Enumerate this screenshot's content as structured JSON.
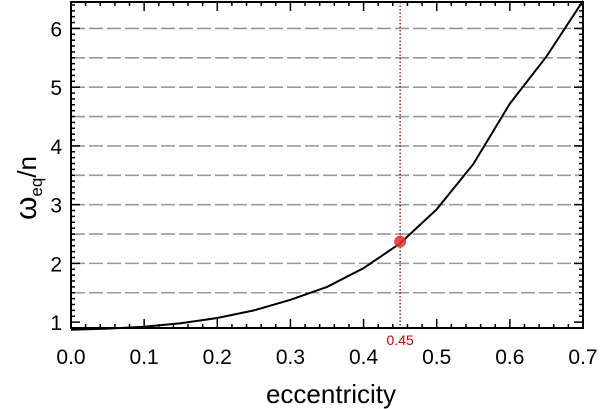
{
  "chart_data": {
    "type": "line",
    "xlabel": "eccentricity",
    "ylabel_main": "ω",
    "ylabel_sub": "eq",
    "ylabel_tail": "/n",
    "xlim": [
      0.0,
      0.7
    ],
    "ylim": [
      0.9,
      6.45
    ],
    "x_ticks": [
      "0.0",
      "0.1",
      "0.2",
      "0.3",
      "0.4",
      "0.5",
      "0.6",
      "0.7"
    ],
    "y_ticks": [
      "1",
      "2",
      "3",
      "4",
      "5",
      "6"
    ],
    "reference_lines_y": [
      1.5,
      2.0,
      2.5,
      3.0,
      3.5,
      4.0,
      4.5,
      5.0,
      5.5,
      6.0
    ],
    "series": [
      {
        "x": [
          0.0,
          0.05,
          0.1,
          0.15,
          0.2,
          0.25,
          0.3,
          0.35,
          0.4,
          0.45,
          0.5,
          0.55,
          0.6,
          0.65,
          0.7
        ],
        "y": [
          0.87,
          0.89,
          0.92,
          0.98,
          1.07,
          1.2,
          1.38,
          1.6,
          1.92,
          2.34,
          2.92,
          3.69,
          4.72,
          5.52,
          6.47
        ]
      }
    ],
    "marker": {
      "x": 0.45,
      "y": 2.37,
      "label": "0.45"
    },
    "colors": {
      "curve": "#000000",
      "grid": "#999999",
      "marker": "#e03030",
      "marker_line": "#cc0000"
    }
  }
}
